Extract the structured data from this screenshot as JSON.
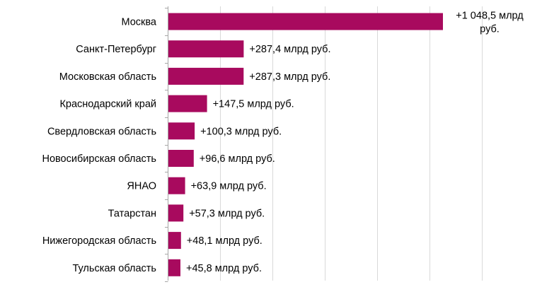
{
  "chart_data": {
    "type": "bar",
    "orientation": "horizontal",
    "categories": [
      "Москва",
      "Санкт-Петербург",
      "Московская область",
      "Краснодарский край",
      "Свердловская область",
      "Новосибирская область",
      "ЯНАО",
      "Татарстан",
      "Нижегородская область",
      "Тульская область"
    ],
    "values": [
      1048.5,
      287.4,
      287.3,
      147.5,
      100.3,
      96.6,
      63.9,
      57.3,
      48.1,
      45.8
    ],
    "data_labels": [
      [
        "+1 048,5 млрд",
        "руб."
      ],
      [
        "+287,4 млрд руб."
      ],
      [
        "+287,3 млрд руб."
      ],
      [
        "+147,5 млрд руб."
      ],
      [
        "+100,3 млрд руб."
      ],
      [
        "+96,6 млрд руб."
      ],
      [
        "+63,9 млрд руб."
      ],
      [
        "+57,3 млрд руб."
      ],
      [
        "+48,1 млрд руб."
      ],
      [
        "+45,8 млрд руб."
      ]
    ],
    "xlim": [
      0,
      1200
    ],
    "x_gridline_step": 200,
    "grid": true,
    "bar_color": "#a80a5e",
    "grid_color": "#d9d9d9",
    "axis_color": "#a6a6a6",
    "title": "",
    "xlabel": "",
    "ylabel": ""
  }
}
